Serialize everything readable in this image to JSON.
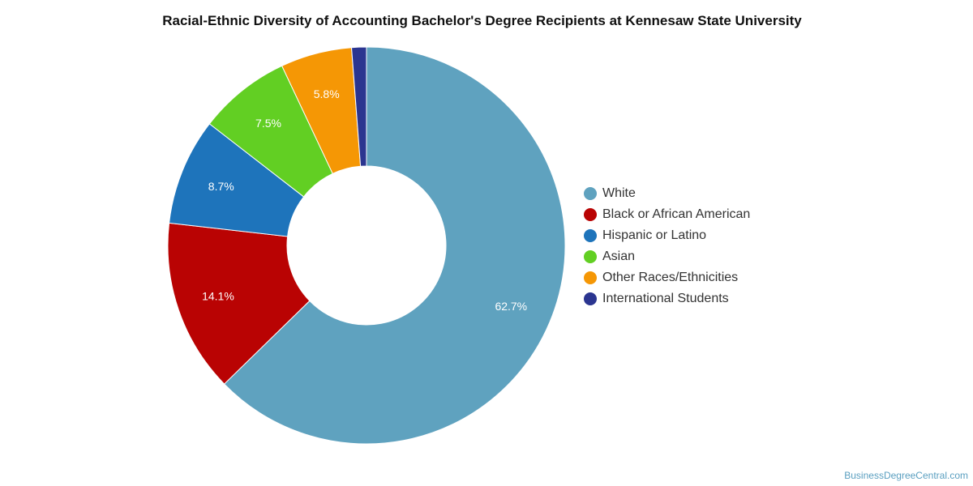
{
  "chart_data": {
    "type": "pie",
    "variant": "donut",
    "title": "Racial-Ethnic Diversity of Accounting Bachelor's Degree Recipients at Kennesaw State University",
    "series": [
      {
        "name": "White",
        "value": 62.7,
        "label": "62.7%",
        "color": "#5fa2bf"
      },
      {
        "name": "Black or African American",
        "value": 14.1,
        "label": "14.1%",
        "color": "#b90303"
      },
      {
        "name": "Hispanic or Latino",
        "value": 8.7,
        "label": "8.7%",
        "color": "#1e74bb"
      },
      {
        "name": "Asian",
        "value": 7.5,
        "label": "7.5%",
        "color": "#62cf23"
      },
      {
        "name": "Other Races/Ethnicities",
        "value": 5.8,
        "label": "5.8%",
        "color": "#f59705"
      },
      {
        "name": "International Students",
        "value": 1.2,
        "label": "",
        "color": "#2b3590"
      }
    ],
    "legend_position": "right"
  },
  "footer": {
    "source": "BusinessDegreeCentral.com"
  }
}
